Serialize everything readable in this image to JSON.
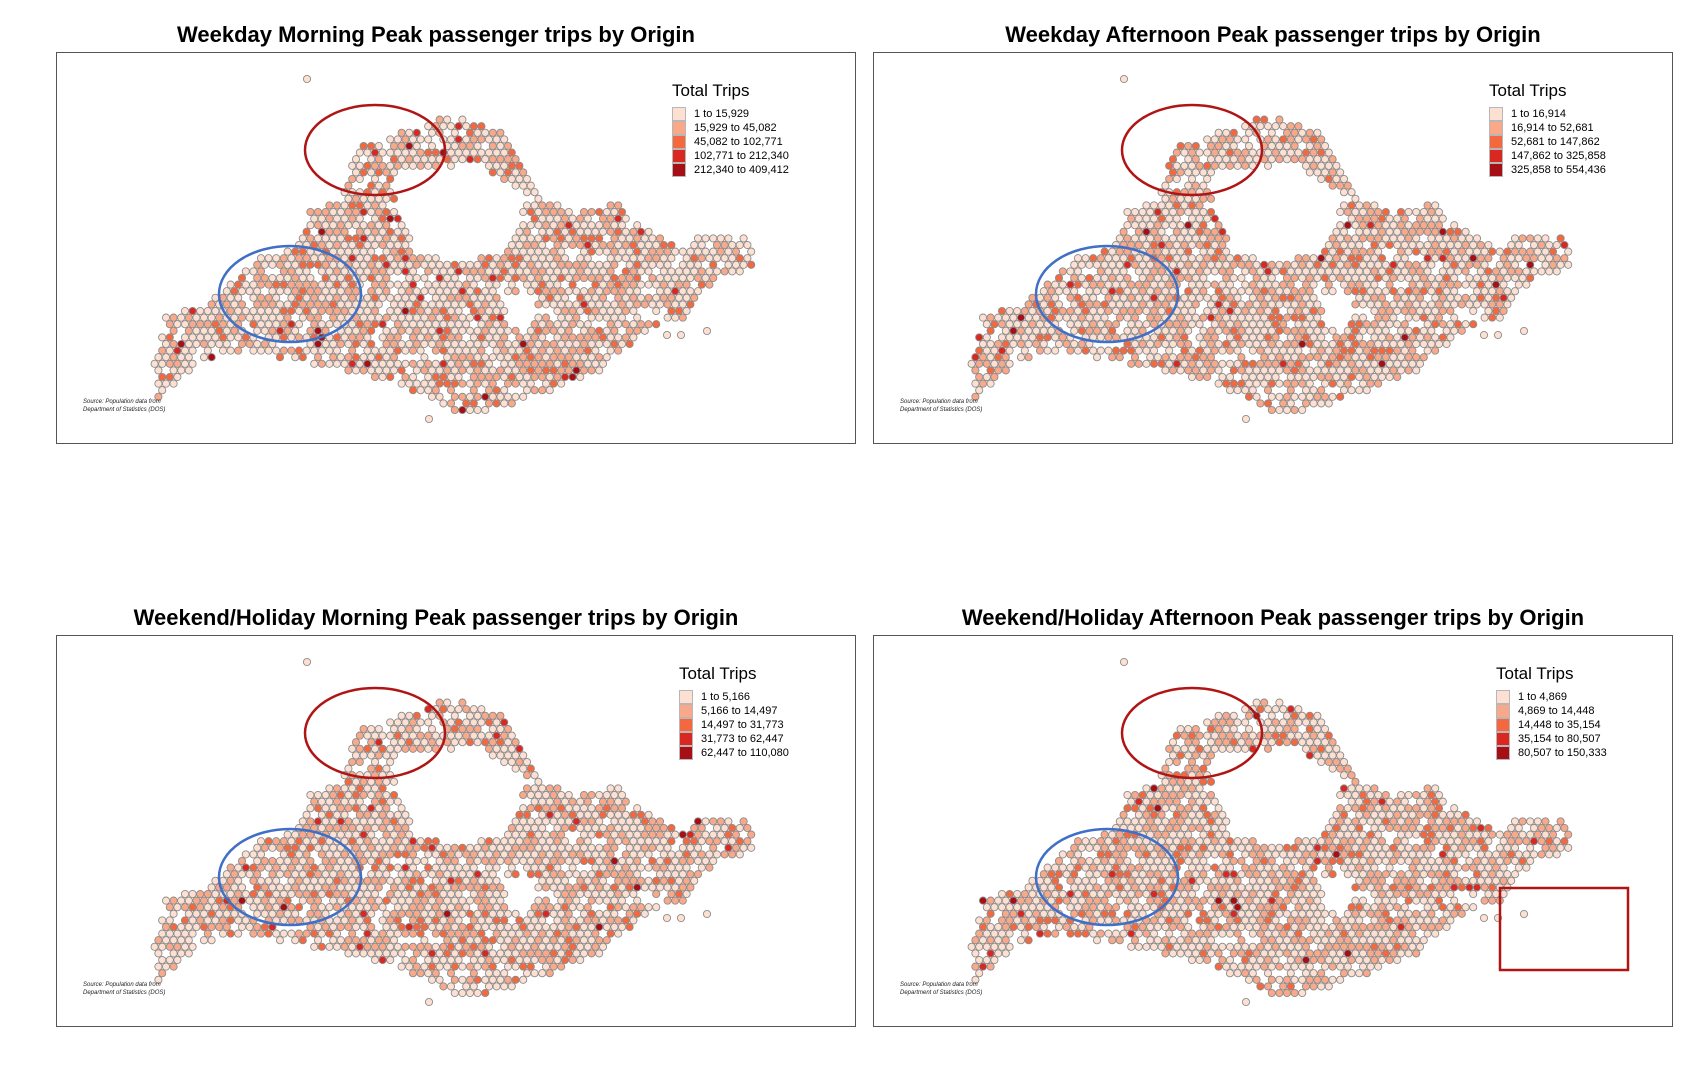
{
  "panels": [
    {
      "title": "Weekday Morning Peak passenger trips by Origin",
      "legend_title": "Total Trips",
      "legend": [
        "1 to 15,929",
        "15,929 to 45,082",
        "45,082 to 102,771",
        "102,771 to 212,340",
        "212,340 to 409,412"
      ],
      "source": [
        "Source: Population data from",
        "Department of Statistics (DOS)"
      ],
      "highlights": [
        "red-ellipse-north",
        "blue-ellipse-west"
      ]
    },
    {
      "title": "Weekday Afternoon Peak passenger trips by Origin",
      "legend_title": "Total Trips",
      "legend": [
        "1 to 16,914",
        "16,914 to 52,681",
        "52,681 to 147,862",
        "147,862 to 325,858",
        "325,858 to 554,436"
      ],
      "source": [
        "Source: Population data from",
        "Department of Statistics (DOS)"
      ],
      "highlights": [
        "red-ellipse-north",
        "blue-ellipse-west"
      ]
    },
    {
      "title": "Weekend/Holiday Morning Peak passenger trips by Origin",
      "legend_title": "Total Trips",
      "legend": [
        "1 to 5,166",
        "5,166 to 14,497",
        "14,497 to 31,773",
        "31,773 to 62,447",
        "62,447 to 110,080"
      ],
      "source": [
        "Source: Population data from",
        "Department of Statistics (DOS)"
      ],
      "highlights": [
        "red-ellipse-north",
        "blue-ellipse-west"
      ]
    },
    {
      "title": "Weekend/Holiday Afternoon Peak passenger trips by Origin",
      "legend_title": "Total Trips",
      "legend": [
        "1 to 4,869",
        "4,869 to 14,448",
        "14,448 to 35,154",
        "35,154 to 80,507",
        "80,507 to 150,333"
      ],
      "source": [
        "Source: Population data from",
        "Department of Statistics (DOS)"
      ],
      "highlights": [
        "red-ellipse-north",
        "blue-ellipse-west",
        "red-rectangle-east"
      ]
    }
  ],
  "colors": {
    "class_1": "#fde0d2",
    "class_2": "#f9a88a",
    "class_3": "#f4683f",
    "class_4": "#d92721",
    "class_5": "#a50f15",
    "hex_outline": "#8c8c8c",
    "red_annotation": "#b01515",
    "blue_annotation": "#3f6fc6"
  }
}
